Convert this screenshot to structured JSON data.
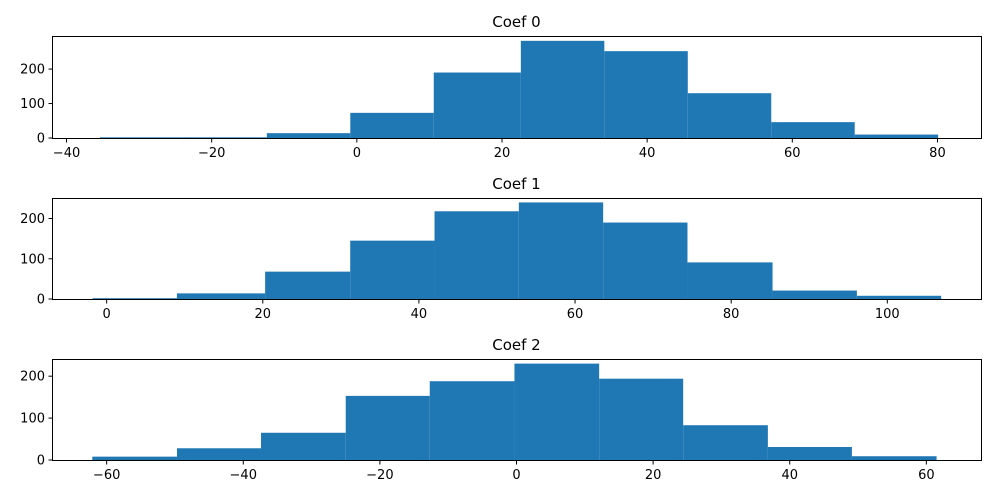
{
  "chart_data": [
    {
      "type": "bar",
      "title": "Coef 0",
      "color": "#1f77b4",
      "bin_edges": [
        -35.4,
        -23.9,
        -12.4,
        -0.9,
        10.6,
        22.6,
        34.1,
        45.6,
        57.1,
        68.6,
        80.1
      ],
      "values": [
        2,
        2,
        14,
        73,
        190,
        282,
        252,
        130,
        46,
        10
      ],
      "xlim": [
        -42.0,
        86.0
      ],
      "ylim": [
        0,
        296
      ],
      "xticks": [
        -40,
        -20,
        0,
        20,
        40,
        60,
        80
      ],
      "xtick_labels": [
        "−40",
        "−20",
        "0",
        "20",
        "40",
        "60",
        "80"
      ],
      "yticks": [
        0,
        100,
        200
      ],
      "ytick_labels": [
        "0",
        "100",
        "200"
      ]
    },
    {
      "type": "bar",
      "title": "Coef 1",
      "color": "#1f77b4",
      "bin_edges": [
        -1.8,
        9.0,
        20.3,
        31.2,
        42.0,
        52.8,
        63.6,
        74.4,
        85.3,
        96.1,
        106.9
      ],
      "values": [
        2,
        14,
        68,
        145,
        218,
        240,
        190,
        91,
        21,
        8
      ],
      "xlim": [
        -7.0,
        112.0
      ],
      "ylim": [
        0,
        251
      ],
      "xticks": [
        0,
        20,
        40,
        60,
        80,
        100
      ],
      "xtick_labels": [
        "0",
        "20",
        "40",
        "60",
        "80",
        "100"
      ],
      "yticks": [
        0,
        100,
        200
      ],
      "ytick_labels": [
        "0",
        "100",
        "200"
      ]
    },
    {
      "type": "bar",
      "title": "Coef 2",
      "color": "#1f77b4",
      "bin_edges": [
        -62.1,
        -49.7,
        -37.4,
        -25.0,
        -12.7,
        -0.3,
        12.1,
        24.4,
        36.8,
        49.1,
        61.5
      ],
      "values": [
        8,
        28,
        65,
        153,
        188,
        230,
        194,
        83,
        31,
        9
      ],
      "xlim": [
        -68.0,
        68.0
      ],
      "ylim": [
        0,
        241
      ],
      "xticks": [
        -60,
        -40,
        -20,
        0,
        20,
        40,
        60
      ],
      "xtick_labels": [
        "−60",
        "−40",
        "−20",
        "0",
        "20",
        "40",
        "60"
      ],
      "yticks": [
        0,
        100,
        200
      ],
      "ytick_labels": [
        "0",
        "100",
        "200"
      ]
    }
  ]
}
